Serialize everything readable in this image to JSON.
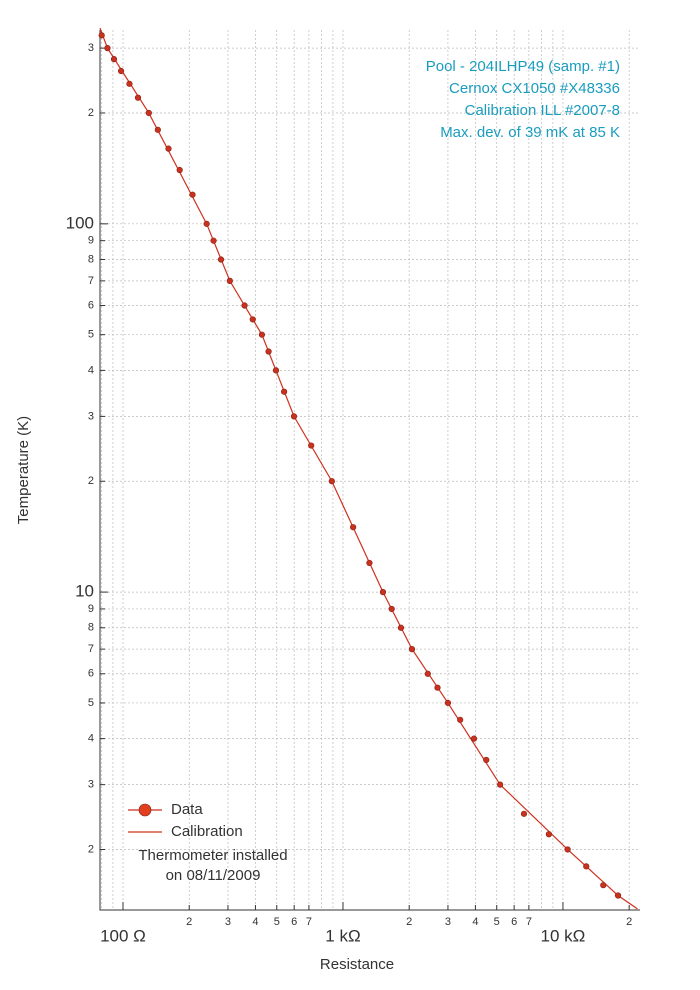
{
  "chart_data": {
    "type": "scatter",
    "log_x": true,
    "log_y": true,
    "grid": true,
    "xlabel": "Resistance",
    "ylabel": "Temperature (K)",
    "annotations": [
      "Pool - 204ILHP49 (samp. #1)",
      "Cernox CX1050 #X48336",
      "Calibration ILL #2007-8",
      "Max. dev. of 39 mK at 85 K"
    ],
    "legend_position": "lower left",
    "legend_note": [
      "Thermometer installed",
      "on 08/11/2009"
    ],
    "xlim": [
      78.6,
      22400
    ],
    "ylim": [
      1.37,
      336
    ],
    "xticks": [
      {
        "value": 100,
        "label": "100  Ω"
      },
      {
        "value": 200,
        "label": "2"
      },
      {
        "value": 300,
        "label": "3"
      },
      {
        "value": 400,
        "label": "4"
      },
      {
        "value": 500,
        "label": "5"
      },
      {
        "value": 600,
        "label": "6"
      },
      {
        "value": 700,
        "label": "7"
      },
      {
        "value": 1000,
        "label": "1 kΩ"
      },
      {
        "value": 2000,
        "label": "2"
      },
      {
        "value": 3000,
        "label": "3"
      },
      {
        "value": 4000,
        "label": "4"
      },
      {
        "value": 5000,
        "label": "5"
      },
      {
        "value": 6000,
        "label": "6"
      },
      {
        "value": 7000,
        "label": "7"
      },
      {
        "value": 10000,
        "label": "10 kΩ"
      },
      {
        "value": 20000,
        "label": "2"
      }
    ],
    "x_minor_grid": [
      80,
      90,
      800,
      900,
      8000,
      9000
    ],
    "yticks": [
      {
        "value": 300,
        "label": "3"
      },
      {
        "value": 200,
        "label": "2"
      },
      100,
      {
        "value": 90,
        "label": "9"
      },
      {
        "value": 80,
        "label": "8"
      },
      {
        "value": 70,
        "label": "7"
      },
      {
        "value": 60,
        "label": "6"
      },
      {
        "value": 50,
        "label": "5"
      },
      {
        "value": 40,
        "label": "4"
      },
      {
        "value": 30,
        "label": "3"
      },
      {
        "value": 20,
        "label": "2"
      },
      10,
      {
        "value": 9,
        "label": "9"
      },
      {
        "value": 8,
        "label": "8"
      },
      {
        "value": 7,
        "label": "7"
      },
      {
        "value": 6,
        "label": "6"
      },
      {
        "value": 5,
        "label": "5"
      },
      {
        "value": 4,
        "label": "4"
      },
      {
        "value": 3,
        "label": "3"
      },
      {
        "value": 2,
        "label": "2"
      }
    ],
    "series": [
      {
        "name": "Data",
        "color": "#c8321f",
        "mode": "markers",
        "x": [
          80,
          85,
          91,
          98,
          107,
          117,
          131,
          144,
          161,
          181,
          207,
          240,
          258,
          279,
          306,
          357,
          389,
          428,
          459,
          496,
          540,
          599,
          717,
          890,
          1112,
          1319,
          1520,
          1665,
          1835,
          2060,
          2430,
          2690,
          3000,
          3410,
          3940,
          4480,
          5180,
          6650,
          8630,
          10500,
          12760,
          15250,
          17800
        ],
        "values": [
          325,
          300,
          280,
          260,
          240,
          220,
          200,
          180,
          160,
          140,
          120,
          100,
          90,
          80,
          70,
          60,
          55,
          50,
          45,
          40,
          35,
          30,
          25,
          20,
          15,
          12,
          10,
          9,
          8,
          7,
          6,
          5.5,
          5,
          4.5,
          4,
          3.5,
          3,
          2.5,
          2.2,
          2,
          1.8,
          1.6,
          1.5
        ]
      },
      {
        "name": "Calibration",
        "color": "#d0301e",
        "mode": "line",
        "x": [
          78.6,
          85,
          131,
          240,
          306,
          428,
          599,
          890,
          1520,
          2060,
          3000,
          5180,
          10500,
          17800,
          21800
        ],
        "values": [
          340,
          300,
          200,
          100,
          70,
          50,
          30,
          20,
          10,
          7,
          5,
          3,
          2,
          1.5,
          1.38
        ]
      }
    ]
  }
}
